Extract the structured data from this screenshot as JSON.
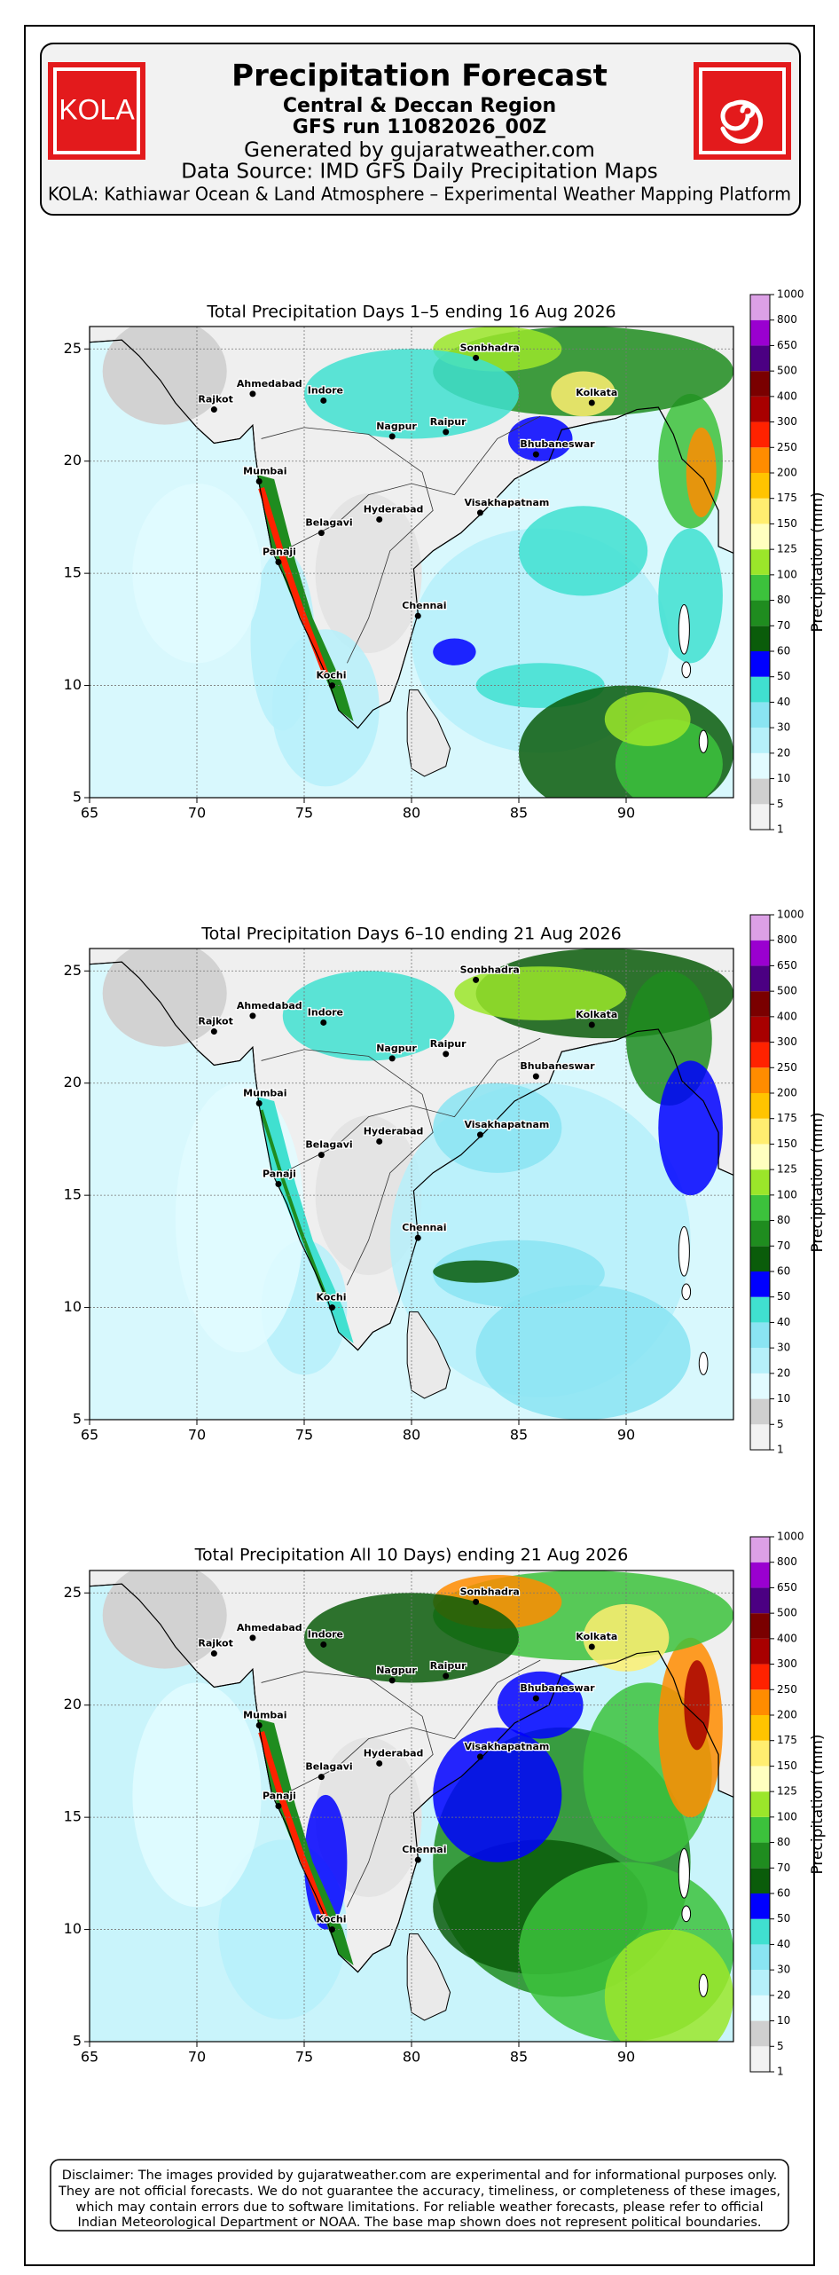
{
  "header": {
    "logo_text": "KOLA",
    "title": "Precipitation Forecast",
    "lines": [
      "Central & Deccan Region",
      "GFS run 11082026_00Z",
      "Generated by gujaratweather.com",
      "Data Source: IMD GFS Daily Precipitation Maps",
      "KOLA: Kathiawar Ocean & Land Atmosphere – Experimental Weather Mapping Platform"
    ]
  },
  "axes": {
    "xlim": [
      65,
      95
    ],
    "ylim": [
      5,
      26
    ],
    "xticks": [
      65,
      70,
      75,
      80,
      85,
      90
    ],
    "yticks": [
      5,
      10,
      15,
      20,
      25
    ]
  },
  "cities": [
    "Rajkot",
    "Ahmedabad",
    "Indore",
    "Sonbhadra",
    "Kolkata",
    "Nagpur",
    "Raipur",
    "Bhubaneswar",
    "Mumbai",
    "Hyderabad",
    "Visakhapatnam",
    "Belagavi",
    "Panaji",
    "Chennai",
    "Kochi"
  ],
  "colorbar": {
    "label": "Precipitation (mm)",
    "ticks": [
      1,
      5,
      10,
      20,
      30,
      40,
      50,
      60,
      70,
      80,
      100,
      125,
      150,
      175,
      200,
      250,
      300,
      400,
      500,
      650,
      800,
      1000
    ],
    "colors": [
      "#f2f2f2",
      "#cfcfcf",
      "#e2fbff",
      "#b6f0fa",
      "#8ae4f2",
      "#40e0d0",
      "#0000ff",
      "#0a5c0a",
      "#1f8c1f",
      "#3cc23c",
      "#9be62a",
      "#ffffbf",
      "#ffee70",
      "#ffc400",
      "#ff8c00",
      "#ff2200",
      "#a80000",
      "#7a0000",
      "#4b0082",
      "#9a00d0",
      "#dca0e6"
    ]
  },
  "maps": [
    {
      "title": "Total Precipitation Days 1–5 ending 16 Aug 2026"
    },
    {
      "title": "Total Precipitation Days 6–10 ending 21 Aug 2026"
    },
    {
      "title": "Total Precipitation All 10 Days) ending 21 Aug 2026"
    }
  ],
  "disclaimer": [
    "Disclaimer: The images provided by gujaratweather.com are experimental and for informational purposes only.",
    "They are not official forecasts. We do not guarantee the accuracy, timeliness, or completeness of these images,",
    "which may contain errors due to software limitations. For reliable weather forecasts, please refer to official",
    "Indian Meteorological Department or NOAA. The base map shown does not represent political boundaries."
  ]
}
